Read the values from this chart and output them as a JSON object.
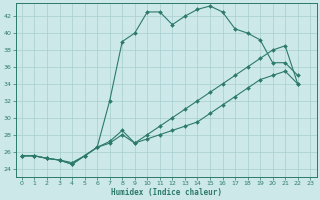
{
  "xlabel": "Humidex (Indice chaleur)",
  "bg_color": "#cce8e8",
  "line_color": "#2d7a6a",
  "grid_color": "#a8cece",
  "xlim": [
    -0.5,
    23.5
  ],
  "ylim": [
    23,
    43.5
  ],
  "xticks": [
    0,
    1,
    2,
    3,
    4,
    5,
    6,
    7,
    8,
    9,
    10,
    11,
    12,
    13,
    14,
    15,
    16,
    17,
    18,
    19,
    20,
    21,
    22,
    23
  ],
  "yticks": [
    24,
    26,
    28,
    30,
    32,
    34,
    36,
    38,
    40,
    42
  ],
  "series": [
    {
      "x": [
        0,
        1,
        2,
        3,
        4,
        5,
        6,
        7,
        8,
        9,
        10,
        11,
        12,
        13,
        14,
        15,
        16,
        17,
        18,
        19,
        20,
        21,
        22
      ],
      "y": [
        25.5,
        25.5,
        25.2,
        25.0,
        24.7,
        25.5,
        26.5,
        27.2,
        28.5,
        27.0,
        27.5,
        28.0,
        28.5,
        29.0,
        29.5,
        30.5,
        31.5,
        32.5,
        33.5,
        34.5,
        35.0,
        35.5,
        34.0
      ]
    },
    {
      "x": [
        0,
        1,
        2,
        3,
        4,
        5,
        6,
        7,
        8,
        9,
        10,
        11,
        12,
        13,
        14,
        15,
        16,
        17,
        18,
        19,
        20,
        21,
        22
      ],
      "y": [
        25.5,
        25.5,
        25.2,
        25.0,
        24.5,
        25.5,
        26.5,
        32.0,
        39.0,
        40.0,
        42.5,
        42.5,
        41.0,
        42.0,
        42.8,
        43.2,
        42.5,
        40.5,
        40.0,
        39.2,
        36.5,
        36.5,
        35.0
      ]
    },
    {
      "x": [
        0,
        1,
        2,
        3,
        4,
        5,
        6,
        7,
        8,
        9,
        10,
        11,
        12,
        13,
        14,
        15,
        16,
        17,
        18,
        19,
        20,
        21,
        22
      ],
      "y": [
        25.5,
        25.5,
        25.2,
        25.0,
        24.5,
        25.5,
        26.5,
        27.0,
        28.0,
        27.0,
        28.0,
        29.0,
        30.0,
        31.0,
        32.0,
        33.0,
        34.0,
        35.0,
        36.0,
        37.0,
        38.0,
        38.5,
        34.0
      ]
    }
  ],
  "marker_size": 2.0,
  "linewidth": 0.8
}
